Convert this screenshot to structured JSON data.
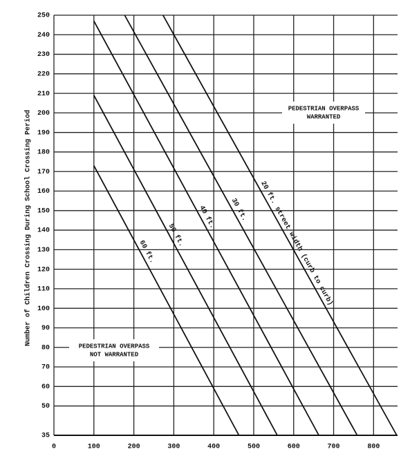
{
  "chart_data": {
    "type": "line",
    "ylabel": "Number of Children Crossing During School Crossing Period",
    "xlim": [
      0,
      860
    ],
    "ylim": [
      35,
      250
    ],
    "xticks": [
      0,
      100,
      200,
      300,
      400,
      500,
      600,
      700,
      800
    ],
    "yticks": [
      35,
      50,
      60,
      70,
      80,
      90,
      100,
      110,
      120,
      130,
      140,
      150,
      160,
      170,
      180,
      190,
      200,
      210,
      220,
      230,
      240,
      250
    ],
    "grid": true,
    "series": [
      {
        "name": "60 ft.",
        "color": "#111111",
        "x": [
          100,
          463
        ],
        "values": [
          173,
          35
        ]
      },
      {
        "name": "50 ft.",
        "color": "#111111",
        "x": [
          100,
          559
        ],
        "values": [
          209,
          35
        ]
      },
      {
        "name": "40 ft.",
        "color": "#111111",
        "x": [
          100,
          663
        ],
        "values": [
          247,
          35
        ]
      },
      {
        "name": "30 ft.",
        "color": "#111111",
        "x": [
          177,
          759
        ],
        "values": [
          250,
          35
        ]
      },
      {
        "name": "20 ft. street width (curb to curb)",
        "color": "#111111",
        "x": [
          273,
          858
        ],
        "values": [
          250,
          35
        ]
      }
    ],
    "annotations": [
      {
        "lines": [
          "PEDESTRIAN OVERPASS",
          "WARRANTED"
        ]
      },
      {
        "lines": [
          "PEDESTRIAN OVERPASS",
          "NOT WARRANTED"
        ]
      }
    ]
  }
}
